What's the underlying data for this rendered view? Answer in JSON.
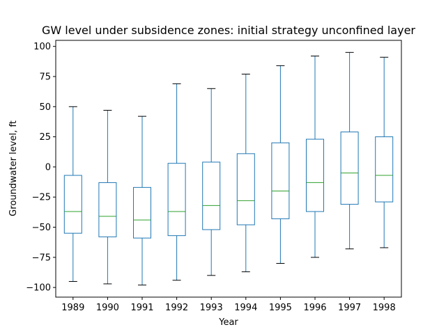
{
  "chart_data": {
    "type": "boxplot",
    "title": "GW level under subsidence zones: initial strategy unconfined layer",
    "xlabel": "Year",
    "ylabel": "Groundwater level, ft",
    "ylim": [
      -108,
      105
    ],
    "yticks": [
      100,
      75,
      50,
      25,
      0,
      -25,
      -50,
      -75,
      -100
    ],
    "ytick_labels": [
      "100",
      "75",
      "50",
      "25",
      "0",
      "−25",
      "−50",
      "−75",
      "−100"
    ],
    "grid": false,
    "colors": {
      "box": "#1f77b4",
      "median": "#2ca02c",
      "whisker_cap": "#000000",
      "axes": "#000000"
    },
    "categories": [
      "1989",
      "1990",
      "1991",
      "1992",
      "1993",
      "1994",
      "1995",
      "1996",
      "1997",
      "1998"
    ],
    "boxes": [
      {
        "whislo": -95,
        "q1": -55,
        "med": -37,
        "q3": -7,
        "whishi": 50
      },
      {
        "whislo": -97,
        "q1": -58,
        "med": -41,
        "q3": -13,
        "whishi": 47
      },
      {
        "whislo": -98,
        "q1": -59,
        "med": -44,
        "q3": -17,
        "whishi": 42
      },
      {
        "whislo": -94,
        "q1": -57,
        "med": -37,
        "q3": 3,
        "whishi": 69
      },
      {
        "whislo": -90,
        "q1": -52,
        "med": -32,
        "q3": 4,
        "whishi": 65
      },
      {
        "whislo": -87,
        "q1": -48,
        "med": -28,
        "q3": 11,
        "whishi": 77
      },
      {
        "whislo": -80,
        "q1": -43,
        "med": -20,
        "q3": 20,
        "whishi": 84
      },
      {
        "whislo": -75,
        "q1": -37,
        "med": -13,
        "q3": 23,
        "whishi": 92
      },
      {
        "whislo": -68,
        "q1": -31,
        "med": -5,
        "q3": 29,
        "whishi": 95
      },
      {
        "whislo": -67,
        "q1": -29,
        "med": -7,
        "q3": 25,
        "whishi": 91
      }
    ]
  }
}
